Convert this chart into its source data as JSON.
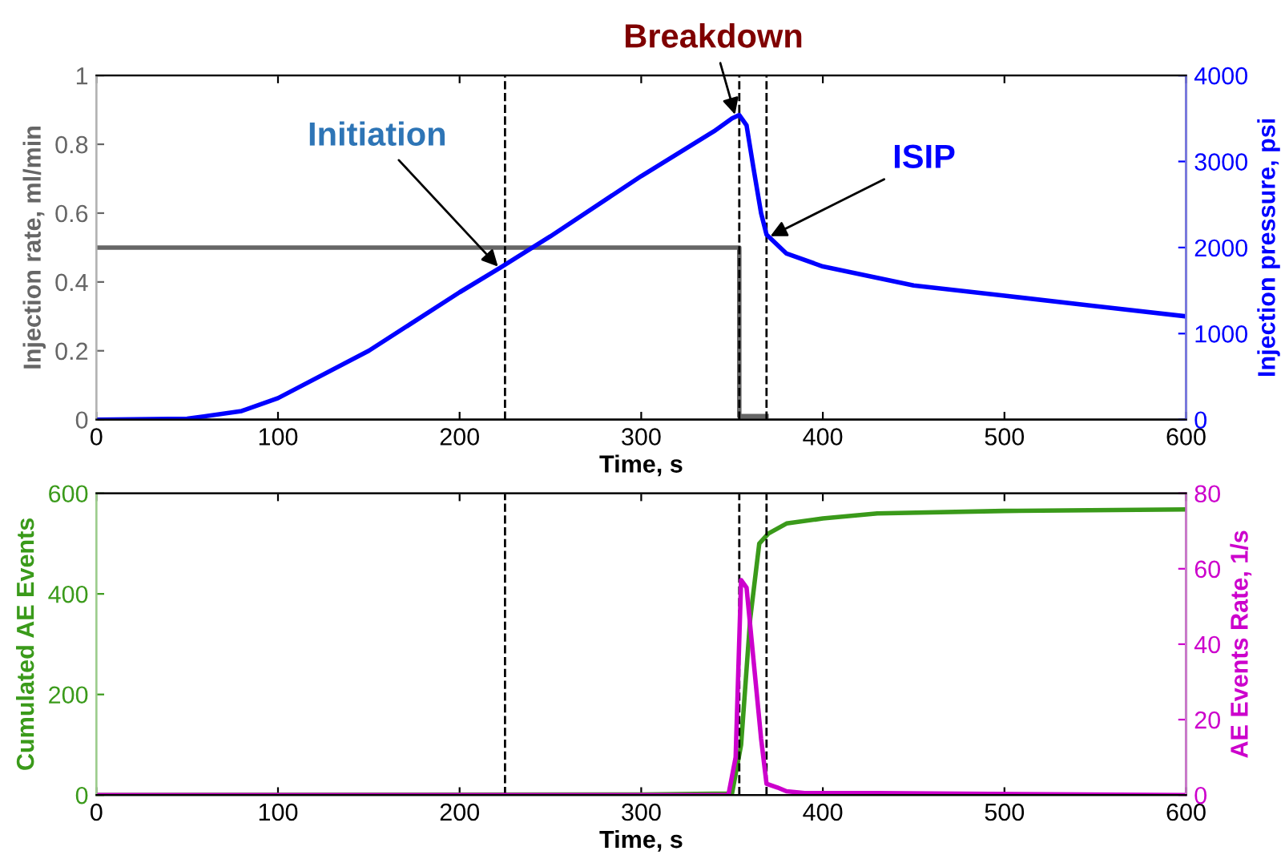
{
  "chart_data": [
    {
      "type": "line",
      "xlabel": "Time, s",
      "ylabel": "Injection rate, ml/min",
      "y2label": "Injection pressure, psi",
      "xlim": [
        0,
        600
      ],
      "xticks": [
        0,
        100,
        200,
        300,
        400,
        500,
        600
      ],
      "ylim": [
        0,
        1
      ],
      "yticks": [
        0,
        0.2,
        0.4,
        0.6,
        0.8,
        1
      ],
      "y2lim": [
        0,
        4000
      ],
      "y2ticks": [
        0,
        1000,
        2000,
        3000,
        4000
      ],
      "grid": false,
      "legend": false,
      "marker": "none",
      "line_style": "solid",
      "series": [
        {
          "color": "#666666",
          "x": [
            0,
            354,
            354,
            369
          ],
          "values": [
            0.5,
            0.5,
            0.01,
            0.01
          ]
        },
        {
          "color": "#0000ff",
          "axis": "y2",
          "x": [
            0,
            50,
            80,
            100,
            150,
            200,
            222,
            250,
            300,
            340,
            350,
            354,
            358,
            362,
            366,
            369,
            380,
            400,
            450,
            500,
            550,
            600
          ],
          "values": [
            0,
            10,
            100,
            250,
            800,
            1480,
            1760,
            2130,
            2830,
            3350,
            3500,
            3540,
            3420,
            2900,
            2400,
            2150,
            1930,
            1780,
            1560,
            1440,
            1320,
            1200
          ]
        }
      ],
      "ref_lines": [
        {
          "axis": "x",
          "value": 225,
          "color": "#000000",
          "line_style": "dashed"
        },
        {
          "axis": "x",
          "value": 354,
          "color": "#000000",
          "line_style": "dashed"
        },
        {
          "axis": "x",
          "value": 369,
          "color": "#000000",
          "line_style": "dashed"
        }
      ],
      "annotations": [
        {
          "text": "Initiation",
          "x": 222,
          "y": 0.44
        },
        {
          "text": "Breakdown",
          "x": 352,
          "y": 0.88
        },
        {
          "text": "ISIP",
          "x": 370,
          "y": 0.53
        }
      ]
    },
    {
      "type": "line",
      "xlabel": "Time, s",
      "ylabel": "Cumulated AE Events",
      "y2label": "AE Events Rate, 1/s",
      "xlim": [
        0,
        600
      ],
      "xticks": [
        0,
        100,
        200,
        300,
        400,
        500,
        600
      ],
      "ylim": [
        0,
        600
      ],
      "yticks": [
        0,
        200,
        400,
        600
      ],
      "y2lim": [
        0,
        80
      ],
      "y2ticks": [
        0,
        20,
        40,
        60,
        80
      ],
      "grid": false,
      "legend": false,
      "marker": "none",
      "line_style": "solid",
      "series": [
        {
          "color": "#3a9a1a",
          "x": [
            0,
            300,
            350,
            355,
            360,
            365,
            370,
            380,
            400,
            430,
            500,
            600
          ],
          "values": [
            0,
            1,
            3,
            100,
            350,
            500,
            520,
            540,
            550,
            560,
            565,
            568
          ]
        },
        {
          "color": "#cc00cc",
          "axis": "y2",
          "x": [
            0,
            348,
            352,
            355,
            358,
            362,
            366,
            369,
            375,
            380,
            390,
            430,
            600
          ],
          "values": [
            0,
            0,
            10,
            57,
            55,
            35,
            15,
            3,
            2,
            1,
            0.5,
            0.5,
            0
          ]
        }
      ],
      "ref_lines": [
        {
          "axis": "x",
          "value": 225,
          "color": "#000000",
          "line_style": "dashed"
        },
        {
          "axis": "x",
          "value": 354,
          "color": "#000000",
          "line_style": "dashed"
        },
        {
          "axis": "x",
          "value": 369,
          "color": "#000000",
          "line_style": "dashed"
        }
      ]
    }
  ]
}
